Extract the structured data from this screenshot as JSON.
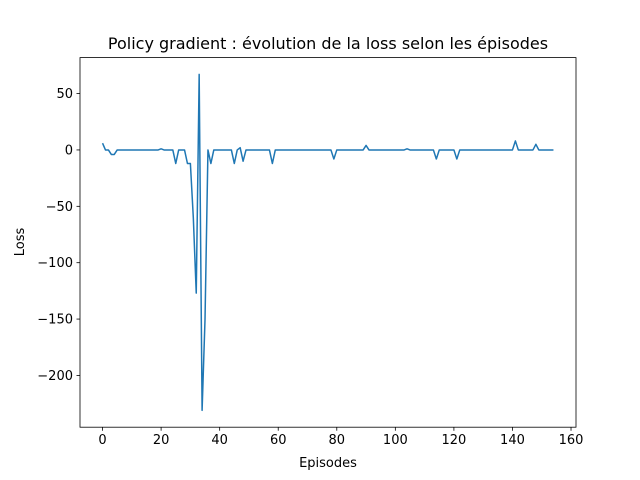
{
  "chart_data": {
    "type": "line",
    "title": "Policy gradient : évolution de la loss selon les épisodes",
    "x_label": "Episodes",
    "y_label": "Loss",
    "x": [
      0,
      1,
      2,
      3,
      4,
      5,
      6,
      7,
      8,
      9,
      10,
      11,
      12,
      13,
      14,
      15,
      16,
      17,
      18,
      19,
      20,
      21,
      22,
      23,
      24,
      25,
      26,
      27,
      28,
      29,
      30,
      31,
      32,
      33,
      34,
      35,
      36,
      37,
      38,
      39,
      40,
      41,
      42,
      43,
      44,
      45,
      46,
      47,
      48,
      49,
      50,
      51,
      52,
      53,
      54,
      55,
      56,
      57,
      58,
      59,
      60,
      61,
      62,
      63,
      64,
      65,
      66,
      67,
      68,
      69,
      70,
      71,
      72,
      73,
      74,
      75,
      76,
      77,
      78,
      79,
      80,
      81,
      82,
      83,
      84,
      85,
      86,
      87,
      88,
      89,
      90,
      91,
      92,
      93,
      94,
      95,
      96,
      97,
      98,
      99,
      100,
      101,
      102,
      103,
      104,
      105,
      106,
      107,
      108,
      109,
      110,
      111,
      112,
      113,
      114,
      115,
      116,
      117,
      118,
      119,
      120,
      121,
      122,
      123,
      124,
      125,
      126,
      127,
      128,
      129,
      130,
      131,
      132,
      133,
      134,
      135,
      136,
      137,
      138,
      139,
      140,
      141,
      142,
      143,
      144,
      145,
      146,
      147,
      148,
      149,
      150,
      151,
      152,
      153,
      154
    ],
    "series": [
      {
        "color": "#1f77b4",
        "values": [
          6,
          0,
          0,
          -4,
          -4,
          0,
          0,
          0,
          0,
          0,
          0,
          0,
          0,
          0,
          0,
          0,
          0,
          0,
          0,
          0,
          1,
          0,
          0,
          0,
          0,
          -12,
          0,
          0,
          0,
          -12,
          -12,
          -60,
          -127,
          67,
          -231,
          -150,
          0,
          -12,
          0,
          0,
          0,
          0,
          0,
          0,
          0,
          -12,
          0,
          2,
          -10,
          0,
          0,
          0,
          0,
          0,
          0,
          0,
          0,
          0,
          -12,
          0,
          0,
          0,
          0,
          0,
          0,
          0,
          0,
          0,
          0,
          0,
          0,
          0,
          0,
          0,
          0,
          0,
          0,
          0,
          0,
          -8,
          0,
          0,
          0,
          0,
          0,
          0,
          0,
          0,
          0,
          0,
          4,
          0,
          0,
          0,
          0,
          0,
          0,
          0,
          0,
          0,
          0,
          0,
          0,
          0,
          1,
          0,
          0,
          0,
          0,
          0,
          0,
          0,
          0,
          0,
          -8,
          0,
          0,
          0,
          0,
          0,
          0,
          -8,
          0,
          0,
          0,
          0,
          0,
          0,
          0,
          0,
          0,
          0,
          0,
          0,
          0,
          0,
          0,
          0,
          0,
          0,
          0,
          8,
          0,
          0,
          0,
          0,
          0,
          0,
          5,
          0,
          0,
          0,
          0,
          0,
          0
        ]
      }
    ],
    "xlim": [
      -7.7,
      161.7
    ],
    "ylim": [
      -245.9,
      81.9
    ],
    "xticks": [
      0,
      20,
      40,
      60,
      80,
      100,
      120,
      140,
      160
    ],
    "yticks": [
      {
        "value": -200,
        "label": "−200"
      },
      {
        "value": -150,
        "label": "−150"
      },
      {
        "value": -100,
        "label": "−100"
      },
      {
        "value": -50,
        "label": "−50"
      },
      0,
      50
    ]
  }
}
